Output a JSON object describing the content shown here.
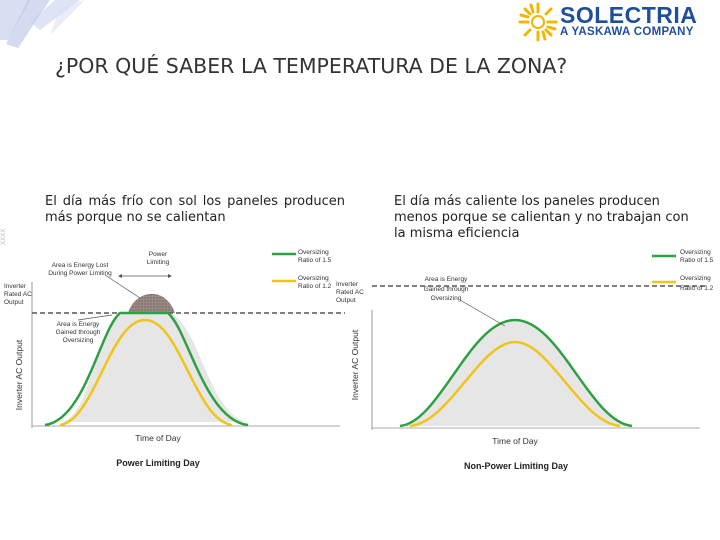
{
  "header": {
    "title": "¿POR QUÉ SABER LA TEMPERATURA DE LA ZONA?",
    "side_mark": "XXXX"
  },
  "logo": {
    "name": "SOLECTRIA",
    "tagline": "A YASKAWA COMPANY",
    "sun_color": "#f2b600",
    "text_color": "#1f4e9c"
  },
  "captions": {
    "left": "El día más frío con sol los paneles producen más porque no se calientan",
    "right": "El día más caliente los paneles producen menos porque se calientan y no trabajan con la misma eficiencia"
  },
  "colors": {
    "ratio_15": "#2ea043",
    "ratio_12": "#f0c419",
    "limit_line": "#555555",
    "energy_lost": "#8a7a76",
    "energy_gained": "#e8e8e8"
  },
  "left_chart": {
    "caption": "Power Limiting Day",
    "ylabel": "Inverter AC Output",
    "xlabel": "Time of Day",
    "limit_label": "Inverter Rated AC Output",
    "power_limit_label": "Power Limiting",
    "lost_label": "Area is Energy Lost During Power Limiting",
    "gained_label": "Area is Energy Gained through Oversizing",
    "legend": [
      {
        "label": "Oversizing Ratio of 1.5",
        "color": "#2ea043"
      },
      {
        "label": "Oversizing Ratio of 1.2",
        "color": "#f0c419"
      }
    ]
  },
  "right_chart": {
    "caption": "Non-Power Limiting Day",
    "ylabel": "Inverter AC Output",
    "xlabel": "Time of Day",
    "limit_label": "Inverter Rated AC Output",
    "gained_label": "Area is Energy Gained through Oversizing",
    "legend": [
      {
        "label": "Oversizing Ratio of 1.5",
        "color": "#2ea043"
      },
      {
        "label": "Oversizing Ratio of 1.2",
        "color": "#f0c419"
      }
    ]
  }
}
